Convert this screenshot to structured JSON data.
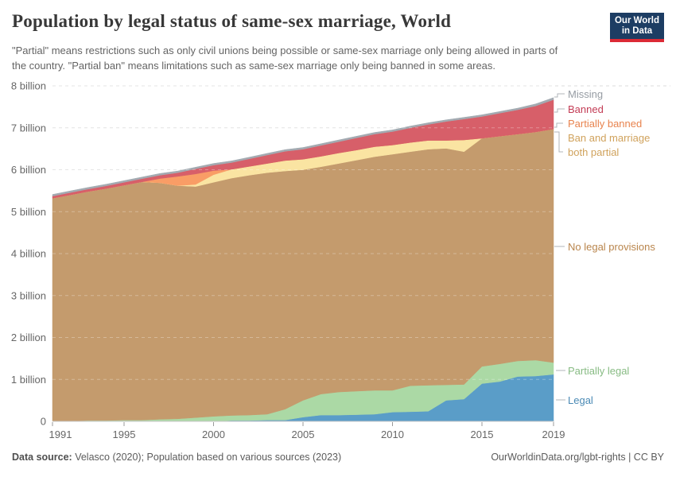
{
  "header": {
    "title": "Population by legal status of same-sex marriage, World",
    "subtitle": "\"Partial\" means restrictions such as only civil unions being possible or same-sex marriage only being allowed in parts of the country. \"Partial ban\" means limitations such as same-sex marriage only being banned in some areas.",
    "logo": {
      "line1": "Our World",
      "line2": "in Data",
      "bg_color": "#1d3d63",
      "stripe_color": "#dc2a35"
    }
  },
  "footer": {
    "source_label": "Data source:",
    "source_text": " Velasco (2020); Population based on various sources (2023)",
    "right_text": "OurWorldinData.org/lgbt-rights | CC BY"
  },
  "chart_data": {
    "type": "area",
    "stacked": true,
    "unit": "billion people",
    "grid": "dashed-horizontal",
    "legend_position": "right",
    "ylim": [
      0,
      8
    ],
    "x": [
      1991,
      1992,
      1993,
      1994,
      1995,
      1996,
      1997,
      1998,
      1999,
      2000,
      2001,
      2002,
      2003,
      2004,
      2005,
      2006,
      2007,
      2008,
      2009,
      2010,
      2011,
      2012,
      2013,
      2014,
      2015,
      2016,
      2017,
      2018,
      2019
    ],
    "x_ticks": [
      "1991",
      "1995",
      "2000",
      "2005",
      "2010",
      "2015",
      "2019"
    ],
    "y_ticks": [
      {
        "value": 0,
        "label": "0"
      },
      {
        "value": 1,
        "label": "1 billion"
      },
      {
        "value": 2,
        "label": "2 billion"
      },
      {
        "value": 3,
        "label": "3 billion"
      },
      {
        "value": 4,
        "label": "4 billion"
      },
      {
        "value": 5,
        "label": "5 billion"
      },
      {
        "value": 6,
        "label": "6 billion"
      },
      {
        "value": 7,
        "label": "7 billion"
      },
      {
        "value": 8,
        "label": "8 billion"
      }
    ],
    "series": [
      {
        "name": "legal",
        "label": "Legal",
        "color": "#5a9dc8",
        "label_color": "#4a8ab5",
        "values": [
          0,
          0,
          0,
          0,
          0,
          0,
          0,
          0,
          0,
          0,
          0.02,
          0.02,
          0.03,
          0.03,
          0.1,
          0.15,
          0.15,
          0.16,
          0.17,
          0.22,
          0.23,
          0.24,
          0.5,
          0.53,
          0.9,
          0.95,
          1.07,
          1.08,
          1.12
        ]
      },
      {
        "name": "partially-legal",
        "label": "Partially legal",
        "color": "#abd9a5",
        "label_color": "#87bb83",
        "values": [
          0.01,
          0.01,
          0.02,
          0.02,
          0.03,
          0.03,
          0.05,
          0.06,
          0.09,
          0.12,
          0.12,
          0.13,
          0.14,
          0.26,
          0.4,
          0.5,
          0.55,
          0.56,
          0.57,
          0.52,
          0.62,
          0.62,
          0.37,
          0.35,
          0.41,
          0.42,
          0.37,
          0.38,
          0.28
        ]
      },
      {
        "name": "no-legal-provisions",
        "label": "No legal provisions",
        "color": "#c49b6d",
        "label_color": "#b9854c",
        "values": [
          5.31,
          5.39,
          5.46,
          5.53,
          5.6,
          5.68,
          5.64,
          5.56,
          5.51,
          5.58,
          5.66,
          5.72,
          5.76,
          5.68,
          5.5,
          5.42,
          5.45,
          5.51,
          5.57,
          5.63,
          5.58,
          5.63,
          5.64,
          5.55,
          5.44,
          5.43,
          5.41,
          5.44,
          5.57
        ]
      },
      {
        "name": "ban-and-marriage-both-partial",
        "label": "Ban and marriage both partial",
        "color": "#fae4a2",
        "label_color": "#d0a25c",
        "values": [
          0,
          0,
          0,
          0,
          0,
          0,
          0,
          0,
          0.05,
          0.18,
          0.21,
          0.21,
          0.22,
          0.25,
          0.25,
          0.25,
          0.25,
          0.24,
          0.24,
          0.22,
          0.22,
          0.21,
          0.19,
          0.28,
          0,
          0,
          0,
          0,
          0
        ]
      },
      {
        "name": "partially-banned",
        "label": "Partially banned",
        "color": "#f99d66",
        "label_color": "#e8834e",
        "values": [
          0,
          0,
          0,
          0,
          0,
          0,
          0.1,
          0.22,
          0.25,
          0.1,
          0,
          0,
          0,
          0,
          0,
          0,
          0,
          0,
          0,
          0,
          0,
          0,
          0,
          0,
          0,
          0,
          0,
          0,
          0
        ]
      },
      {
        "name": "banned",
        "label": "Banned",
        "color": "#d75f69",
        "label_color": "#c33c55",
        "values": [
          0.05,
          0.055,
          0.06,
          0.065,
          0.07,
          0.075,
          0.08,
          0.09,
          0.12,
          0.13,
          0.16,
          0.18,
          0.2,
          0.22,
          0.24,
          0.26,
          0.27,
          0.29,
          0.3,
          0.32,
          0.35,
          0.38,
          0.45,
          0.5,
          0.52,
          0.55,
          0.58,
          0.62,
          0.7
        ]
      },
      {
        "name": "missing",
        "label": "Missing",
        "color": "#a3aab1",
        "label_color": "#969ca3",
        "values": [
          0.04,
          0.04,
          0.04,
          0.04,
          0.04,
          0.04,
          0.04,
          0.04,
          0.04,
          0.04,
          0.04,
          0.04,
          0.04,
          0.04,
          0.04,
          0.04,
          0.04,
          0.04,
          0.04,
          0.04,
          0.04,
          0.04,
          0.04,
          0.04,
          0.04,
          0.04,
          0.04,
          0.05,
          0.05
        ]
      }
    ],
    "legend": [
      {
        "series_index": 6,
        "label_top": 110,
        "two_line": false
      },
      {
        "series_index": 5,
        "label_top": 129,
        "two_line": false
      },
      {
        "series_index": 4,
        "label_top": 147,
        "two_line": false
      },
      {
        "series_index": 3,
        "label_top": 165,
        "two_line": true
      },
      {
        "series_index": 2,
        "label_top": 302,
        "two_line": false
      },
      {
        "series_index": 1,
        "label_top": 458,
        "two_line": false
      },
      {
        "series_index": 0,
        "label_top": 495,
        "two_line": false
      }
    ]
  }
}
